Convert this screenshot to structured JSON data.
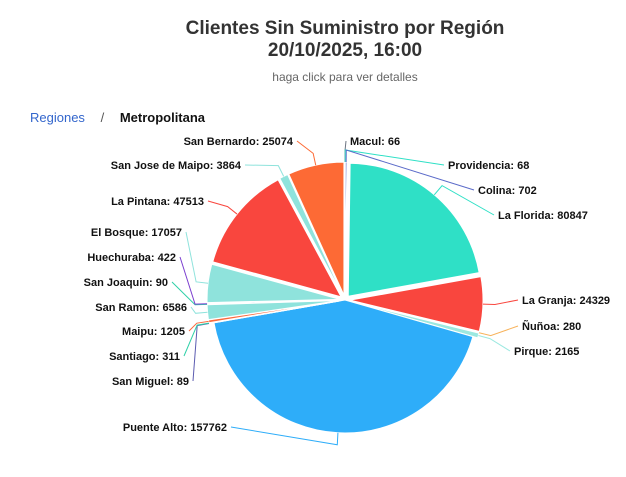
{
  "header": {
    "title_line1": "Clientes Sin Suministro por Región",
    "title_line2": "20/10/2025, 16:00",
    "subtitle": "haga click para ver detalles"
  },
  "breadcrumb": {
    "root": "Regiones",
    "separator": "/",
    "current": "Metropolitana"
  },
  "chart_data": {
    "type": "pie",
    "title": "Clientes Sin Suministro por Región 20/10/2025, 16:00",
    "subtitle": "haga click para ver detalles",
    "slices": [
      {
        "name": "Macul",
        "value": 66,
        "color": "#6b7280"
      },
      {
        "name": "Providencia",
        "value": 68,
        "color": "#2fe0c6"
      },
      {
        "name": "Colina",
        "value": 702,
        "color": "#5b6bc9"
      },
      {
        "name": "La Florida",
        "value": 80847,
        "color": "#2fe0c6"
      },
      {
        "name": "La Granja",
        "value": 24329,
        "color": "#f9463e"
      },
      {
        "name": "Ñuñoa",
        "value": 280,
        "color": "#f7b25a"
      },
      {
        "name": "Pirque",
        "value": 2165,
        "color": "#9be8e0"
      },
      {
        "name": "Puente Alto",
        "value": 157762,
        "color": "#2eadf9"
      },
      {
        "name": "San Miguel",
        "value": 89,
        "color": "#5b5bb0"
      },
      {
        "name": "Santiago",
        "value": 311,
        "color": "#2fd0a8"
      },
      {
        "name": "Maipu",
        "value": 1205,
        "color": "#f96a3e"
      },
      {
        "name": "San Ramon",
        "value": 6586,
        "color": "#8fe3dc"
      },
      {
        "name": "San Joaquin",
        "value": 90,
        "color": "#2fd0a8"
      },
      {
        "name": "Huechuraba",
        "value": 422,
        "color": "#7b3fcf"
      },
      {
        "name": "El Bosque",
        "value": 17057,
        "color": "#8fe3dc"
      },
      {
        "name": "La Pintana",
        "value": 47513,
        "color": "#f9463e"
      },
      {
        "name": "San Jose de Maipo",
        "value": 3864,
        "color": "#8fe3dc"
      },
      {
        "name": "San Bernardo",
        "value": 25074,
        "color": "#fd6a35"
      }
    ]
  }
}
